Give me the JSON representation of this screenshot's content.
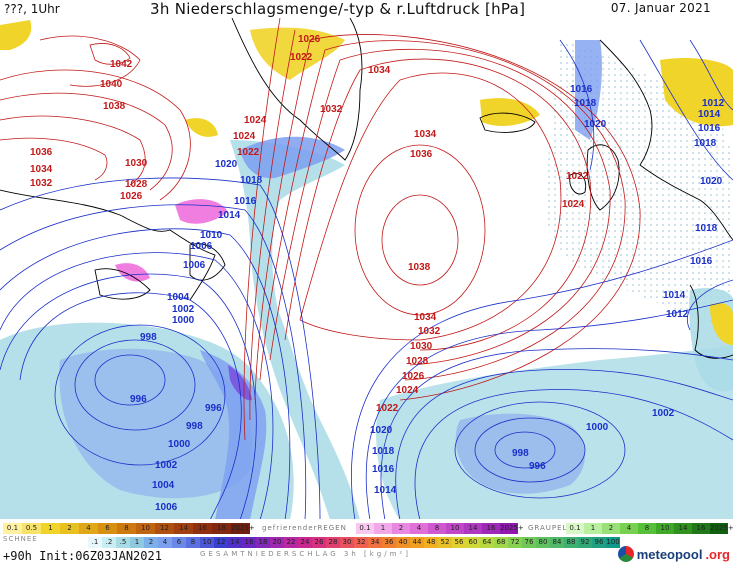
{
  "header": {
    "left": "???, 1Uhr",
    "title": "3h Niederschlagsmenge/-typ & r.Luftdruck [hPa]",
    "date": "07. Januar 2021"
  },
  "footer": {
    "run": "+90h Init:06Z03JAN2021",
    "brand": "meteopool",
    "brand_suffix": ".org"
  },
  "legend": {
    "snow_label": "SCHNEE",
    "snow_values": [
      "0.1",
      "0.5",
      "1",
      "2",
      "4",
      "6",
      "8",
      "10",
      "12",
      "14",
      "16",
      "18",
      "2025+"
    ],
    "frz_label": "gefrierenderREGEN",
    "frz_values": [
      "0.1",
      "1",
      "2",
      "4",
      "8",
      "10",
      "14",
      "16",
      "2025+"
    ],
    "graupel_label": "GRAUPEL",
    "graupel_values": [
      "0.1",
      "1",
      "2",
      "4",
      "8",
      "10",
      "14",
      "16",
      "2025+"
    ],
    "total_values": [
      ".1",
      ".2",
      ".5",
      "1",
      "2",
      "4",
      "6",
      "8",
      "10",
      "12",
      "14",
      "16",
      "18",
      "20",
      "22",
      "24",
      "26",
      "28",
      "30",
      "32",
      "34",
      "36",
      "40",
      "44",
      "48",
      "52",
      "56",
      "60",
      "64",
      "68",
      "72",
      "76",
      "80",
      "84",
      "88",
      "92",
      "96",
      "100"
    ],
    "total_label": "GESAMTNIEDERSCHLAG 3h [kg/m²]"
  },
  "pressure_labels": {
    "red": [
      "1026",
      "1022",
      "1034",
      "1042",
      "1040",
      "1038",
      "1032",
      "1024",
      "1024",
      "1022",
      "1036",
      "1034",
      "1032",
      "1030",
      "1028",
      "1026",
      "1034",
      "1036",
      "1038",
      "1034",
      "1032",
      "1030",
      "1028",
      "1026",
      "1024",
      "1022",
      "1022",
      "1024"
    ],
    "blue": [
      "1020",
      "1018",
      "1016",
      "1014",
      "1010",
      "1006",
      "1006",
      "1004",
      "1002",
      "1000",
      "998",
      "996",
      "996",
      "998",
      "1000",
      "1002",
      "1004",
      "1006",
      "1020",
      "1018",
      "1016",
      "1014",
      "998",
      "996",
      "1002",
      "1000",
      "1014",
      "1012",
      "1016",
      "1018",
      "1020",
      "1012",
      "1014",
      "1016",
      "1018",
      "1016",
      "1018",
      "1020"
    ]
  },
  "colors": {
    "isobar_red": "#c21818",
    "isobar_blue": "#1a2fc8",
    "precip_light": "#a8dbe6",
    "precip_blue": "#7d9ff0",
    "precip_violet": "#7d6ae0",
    "snow_yellow": "#f0d42a",
    "freezing_pink": "#f07de0"
  }
}
